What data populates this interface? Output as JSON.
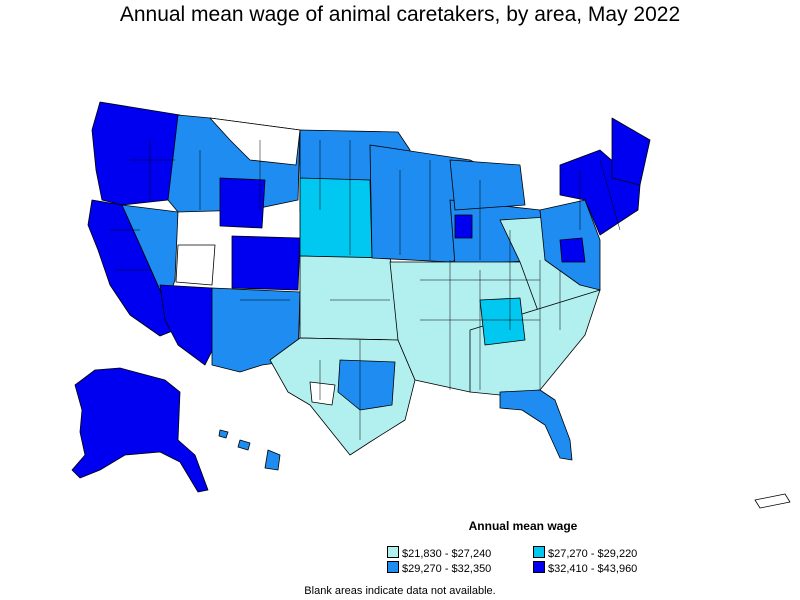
{
  "title": "Annual mean wage of animal caretakers, by area, May 2022",
  "legend": {
    "title": "Annual mean wage",
    "items": [
      {
        "label": "$21,830 - $27,240",
        "color": "#b2f0f0"
      },
      {
        "label": "$27,270 - $29,220",
        "color": "#00c8f0"
      },
      {
        "label": "$29,270 - $32,350",
        "color": "#1e8cf0"
      },
      {
        "label": "$32,410 - $43,960",
        "color": "#0000f0"
      }
    ]
  },
  "footnote": "Blank areas indicate data not available.",
  "colors": {
    "no_data": "#ffffff",
    "outline": "#000000"
  }
}
